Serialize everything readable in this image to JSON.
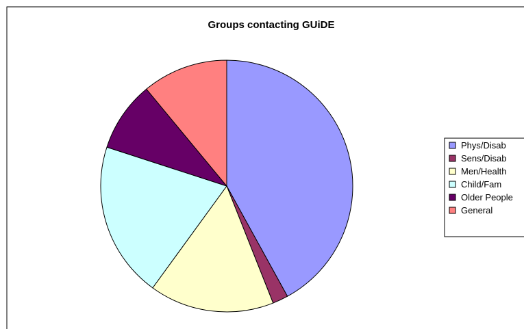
{
  "chart_data": {
    "type": "pie",
    "title": "Groups contacting GUiDE",
    "legend_position": "right",
    "categories": [
      "Phys/Disab",
      "Sens/Disab",
      "Men/Health",
      "Child/Fam",
      "Older People",
      "General"
    ],
    "values": [
      42,
      2,
      16,
      20,
      9,
      11
    ],
    "colors": [
      "#9999FF",
      "#993366",
      "#FFFFCC",
      "#CCFFFF",
      "#660066",
      "#FF8080"
    ]
  }
}
